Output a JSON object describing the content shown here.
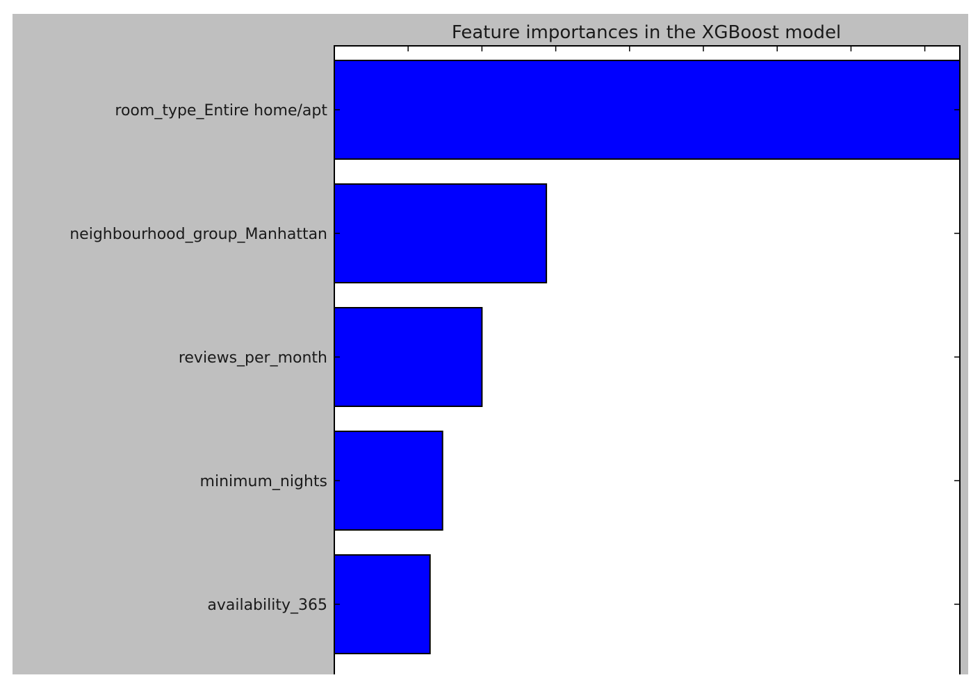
{
  "chart_data": {
    "type": "bar",
    "orientation": "horizontal",
    "title": "Feature importances in the XGBoost model",
    "xlabel": "",
    "ylabel": "",
    "categories": [
      "room_type_Entire home/apt",
      "neighbourhood_group_Manhattan",
      "reviews_per_month",
      "minimum_nights",
      "availability_365"
    ],
    "values": [
      1.0,
      0.339,
      0.236,
      0.173,
      0.153
    ],
    "xlim": [
      0,
      1.0
    ],
    "x_tick_count": 9,
    "grid": false,
    "legend": "none",
    "colors": {
      "bar_fill": "#0000ff",
      "bar_edge": "#000000",
      "figure_background": "#bfbfbf",
      "plot_background": "#ffffff",
      "text": "#1a1a1a"
    }
  }
}
